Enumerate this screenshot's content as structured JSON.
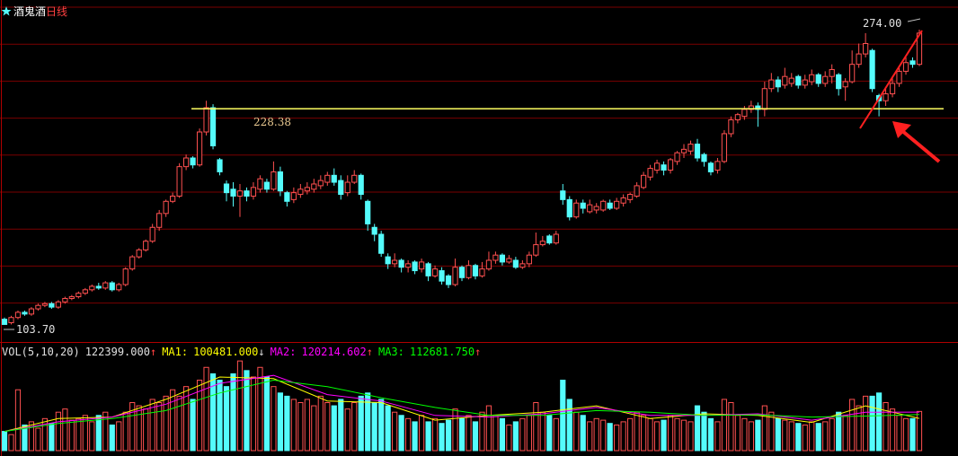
{
  "chart_data": {
    "type": "candlestick",
    "title": "酒鬼酒",
    "period": "日线",
    "ylim": [
      94.4,
      291.1
    ],
    "up_color": "#ff5050",
    "down_color": "#54fcfc",
    "high_label": "274.00",
    "low_label": "103.70",
    "level": {
      "value": 228.38,
      "color": "#ffff60"
    },
    "candles": [
      [
        107,
        108,
        103.7,
        104
      ],
      [
        105,
        109,
        104,
        108
      ],
      [
        108,
        112,
        107,
        111
      ],
      [
        111,
        112,
        109,
        110
      ],
      [
        110,
        114,
        109,
        113
      ],
      [
        113,
        116,
        112,
        115
      ],
      [
        115,
        117,
        114,
        116
      ],
      [
        116,
        117,
        113,
        114
      ],
      [
        114,
        118,
        113,
        117
      ],
      [
        117,
        120,
        116,
        119
      ],
      [
        119,
        121,
        118,
        120
      ],
      [
        120,
        123,
        119,
        122
      ],
      [
        122,
        125,
        121,
        124
      ],
      [
        124,
        127,
        123,
        126
      ],
      [
        126,
        128,
        124,
        125
      ],
      [
        125,
        129,
        124,
        128
      ],
      [
        128,
        129,
        123,
        124
      ],
      [
        124,
        128,
        123,
        127
      ],
      [
        127,
        137,
        126,
        136
      ],
      [
        136,
        144,
        135,
        143
      ],
      [
        143,
        148,
        142,
        147
      ],
      [
        147,
        153,
        146,
        152
      ],
      [
        152,
        162,
        151,
        160
      ],
      [
        160,
        170,
        158,
        168
      ],
      [
        168,
        176,
        166,
        175
      ],
      [
        175,
        180,
        174,
        178
      ],
      [
        178,
        197,
        177,
        195
      ],
      [
        195,
        202,
        193,
        200
      ],
      [
        200,
        201,
        194,
        196
      ],
      [
        196,
        217,
        195,
        215
      ],
      [
        215,
        233,
        213,
        229
      ],
      [
        229,
        231,
        205,
        207
      ],
      [
        199,
        200,
        190,
        192
      ],
      [
        185,
        187,
        175,
        180
      ],
      [
        182,
        186,
        172,
        178
      ],
      [
        178,
        185,
        166,
        181
      ],
      [
        181,
        183,
        175,
        178
      ],
      [
        178,
        186,
        176,
        183
      ],
      [
        182,
        190,
        180,
        188
      ],
      [
        186,
        188,
        180,
        182
      ],
      [
        182,
        198,
        181,
        192
      ],
      [
        192,
        195,
        178,
        181
      ],
      [
        180,
        181,
        172,
        175
      ],
      [
        176,
        183,
        174,
        180
      ],
      [
        179,
        185,
        177,
        182
      ],
      [
        181,
        186,
        179,
        183
      ],
      [
        182,
        188,
        180,
        185
      ],
      [
        184,
        190,
        182,
        187
      ],
      [
        186,
        192,
        184,
        190
      ],
      [
        190,
        194,
        184,
        186
      ],
      [
        187,
        190,
        176,
        179
      ],
      [
        180,
        190,
        178,
        186
      ],
      [
        186,
        193,
        185,
        190
      ],
      [
        190,
        191,
        176,
        179
      ],
      [
        175,
        176,
        158,
        162
      ],
      [
        160,
        162,
        152,
        156
      ],
      [
        156,
        158,
        143,
        145
      ],
      [
        143,
        145,
        136,
        139
      ],
      [
        139,
        145,
        137,
        141
      ],
      [
        141,
        142,
        134,
        137
      ],
      [
        137,
        141,
        134,
        139
      ],
      [
        140,
        141,
        133,
        135
      ],
      [
        136,
        142,
        134,
        140
      ],
      [
        139,
        140,
        129,
        132
      ],
      [
        132,
        138,
        131,
        136
      ],
      [
        135,
        137,
        127,
        129
      ],
      [
        132,
        133,
        125,
        127
      ],
      [
        127,
        142,
        126,
        137
      ],
      [
        137,
        138,
        129,
        131
      ],
      [
        131,
        141,
        130,
        138
      ],
      [
        138,
        139,
        130,
        132
      ],
      [
        132,
        140,
        131,
        136
      ],
      [
        136,
        146,
        135,
        141
      ],
      [
        141,
        146,
        139,
        144
      ],
      [
        144,
        145,
        138,
        140
      ],
      [
        140,
        144,
        139,
        142
      ],
      [
        141,
        143,
        136,
        137
      ],
      [
        137,
        141,
        136,
        139
      ],
      [
        139,
        146,
        137,
        144
      ],
      [
        144,
        157,
        143,
        150
      ],
      [
        150,
        155,
        149,
        152
      ],
      [
        155,
        156,
        150,
        151
      ],
      [
        151,
        158,
        150,
        156
      ],
      [
        181,
        185,
        173,
        176
      ],
      [
        176,
        178,
        164,
        166
      ],
      [
        166,
        176,
        165,
        174
      ],
      [
        174,
        176,
        168,
        171
      ],
      [
        169,
        176,
        168,
        173
      ],
      [
        170,
        174,
        168,
        172
      ],
      [
        170,
        176,
        169,
        175
      ],
      [
        174,
        176,
        170,
        171
      ],
      [
        171,
        177,
        170,
        175
      ],
      [
        174,
        179,
        172,
        177
      ],
      [
        176,
        180,
        174,
        179
      ],
      [
        178,
        186,
        177,
        184
      ],
      [
        183,
        192,
        182,
        190
      ],
      [
        189,
        196,
        187,
        194
      ],
      [
        193,
        199,
        191,
        197
      ],
      [
        196,
        198,
        190,
        193
      ],
      [
        193,
        200,
        191,
        199
      ],
      [
        198,
        204,
        196,
        203
      ],
      [
        203,
        208,
        200,
        205
      ],
      [
        204,
        210,
        202,
        208
      ],
      [
        208,
        211,
        198,
        200
      ],
      [
        202,
        203,
        195,
        198
      ],
      [
        197,
        198,
        190,
        192
      ],
      [
        193,
        200,
        191,
        198
      ],
      [
        198,
        216,
        197,
        214
      ],
      [
        214,
        224,
        212,
        222
      ],
      [
        222,
        226,
        220,
        225
      ],
      [
        224,
        230,
        222,
        228
      ],
      [
        228,
        233,
        226,
        230
      ],
      [
        230,
        232,
        218,
        228
      ],
      [
        228,
        244,
        224,
        240
      ],
      [
        240,
        249,
        238,
        245
      ],
      [
        245,
        247,
        238,
        241
      ],
      [
        242,
        252,
        240,
        247
      ],
      [
        243,
        249,
        241,
        246
      ],
      [
        247,
        248,
        240,
        242
      ],
      [
        242,
        248,
        240,
        245
      ],
      [
        244,
        251,
        242,
        248
      ],
      [
        248,
        249,
        241,
        243
      ],
      [
        243,
        250,
        241,
        247
      ],
      [
        247,
        254,
        243,
        251
      ],
      [
        248,
        249,
        236,
        240
      ],
      [
        241,
        246,
        233,
        244
      ],
      [
        244,
        262,
        243,
        254
      ],
      [
        254,
        266,
        252,
        260
      ],
      [
        260,
        272,
        258,
        266
      ],
      [
        262,
        263,
        238,
        240
      ],
      [
        236,
        237,
        224,
        233
      ],
      [
        233,
        240,
        230,
        237
      ],
      [
        237,
        246,
        235,
        243
      ],
      [
        243,
        252,
        241,
        250
      ],
      [
        250,
        258,
        248,
        255
      ],
      [
        256,
        258,
        252,
        254
      ],
      [
        254,
        274,
        253,
        272
      ]
    ],
    "volume": {
      "name": "VOL(5,10,20)",
      "last_label": "122399.000",
      "arrow": "↑",
      "ylim": [
        0,
        300000
      ],
      "values": [
        60000,
        50000,
        190000,
        80000,
        90000,
        70000,
        100000,
        85000,
        120000,
        130000,
        95000,
        100000,
        110000,
        90000,
        110000,
        120000,
        80000,
        90000,
        120000,
        150000,
        140000,
        130000,
        160000,
        150000,
        170000,
        190000,
        170000,
        200000,
        160000,
        220000,
        260000,
        240000,
        220000,
        200000,
        240000,
        280000,
        250000,
        230000,
        260000,
        230000,
        200000,
        180000,
        170000,
        160000,
        150000,
        160000,
        140000,
        170000,
        150000,
        140000,
        160000,
        130000,
        150000,
        170000,
        180000,
        150000,
        160000,
        140000,
        120000,
        110000,
        100000,
        90000,
        110000,
        90000,
        100000,
        85000,
        95000,
        130000,
        100000,
        110000,
        90000,
        120000,
        140000,
        110000,
        100000,
        80000,
        90000,
        100000,
        110000,
        150000,
        120000,
        110000,
        100000,
        220000,
        160000,
        120000,
        110000,
        90000,
        100000,
        95000,
        85000,
        80000,
        90000,
        100000,
        120000,
        110000,
        100000,
        90000,
        95000,
        110000,
        100000,
        95000,
        90000,
        140000,
        120000,
        100000,
        90000,
        160000,
        150000,
        110000,
        100000,
        90000,
        95000,
        140000,
        120000,
        100000,
        95000,
        90000,
        85000,
        80000,
        90000,
        85000,
        90000,
        100000,
        120000,
        110000,
        160000,
        140000,
        170000,
        170000,
        180000,
        150000,
        130000,
        110000,
        100000,
        100000,
        122399
      ]
    },
    "volume_ma": [
      {
        "name": "MA1:",
        "color": "#ffff00",
        "last_label": "100481.000",
        "arrow": "↓",
        "x": [
          0,
          8,
          16,
          24,
          32,
          40,
          48,
          56,
          64,
          72,
          80,
          88,
          96,
          104,
          112,
          120,
          128,
          136
        ],
        "values": [
          60000,
          100000,
          105000,
          160000,
          230000,
          225000,
          155000,
          150000,
          95000,
          110000,
          120000,
          140000,
          100000,
          115000,
          110000,
          88000,
          140000,
          100481
        ]
      },
      {
        "name": "MA2:",
        "color": "#ff00ff",
        "last_label": "120214.602",
        "arrow": "↑",
        "x": [
          0,
          8,
          16,
          24,
          32,
          40,
          48,
          56,
          64,
          72,
          80,
          88,
          96,
          104,
          112,
          120,
          128,
          136
        ],
        "values": [
          60000,
          90000,
          105000,
          145000,
          210000,
          235000,
          175000,
          155000,
          110000,
          105000,
          115000,
          135000,
          110000,
          110000,
          115000,
          95000,
          120000,
          120214.602
        ]
      },
      {
        "name": "MA3:",
        "color": "#00ff00",
        "last_label": "112681.750",
        "arrow": "↑",
        "x": [
          0,
          8,
          16,
          24,
          32,
          40,
          48,
          56,
          64,
          72,
          80,
          88,
          96,
          104,
          112,
          120,
          128,
          136
        ],
        "values": [
          60000,
          85000,
          100000,
          125000,
          180000,
          220000,
          200000,
          165000,
          135000,
          110000,
          110000,
          125000,
          120000,
          110000,
          112000,
          105000,
          108000,
          112681.75
        ]
      }
    ]
  }
}
